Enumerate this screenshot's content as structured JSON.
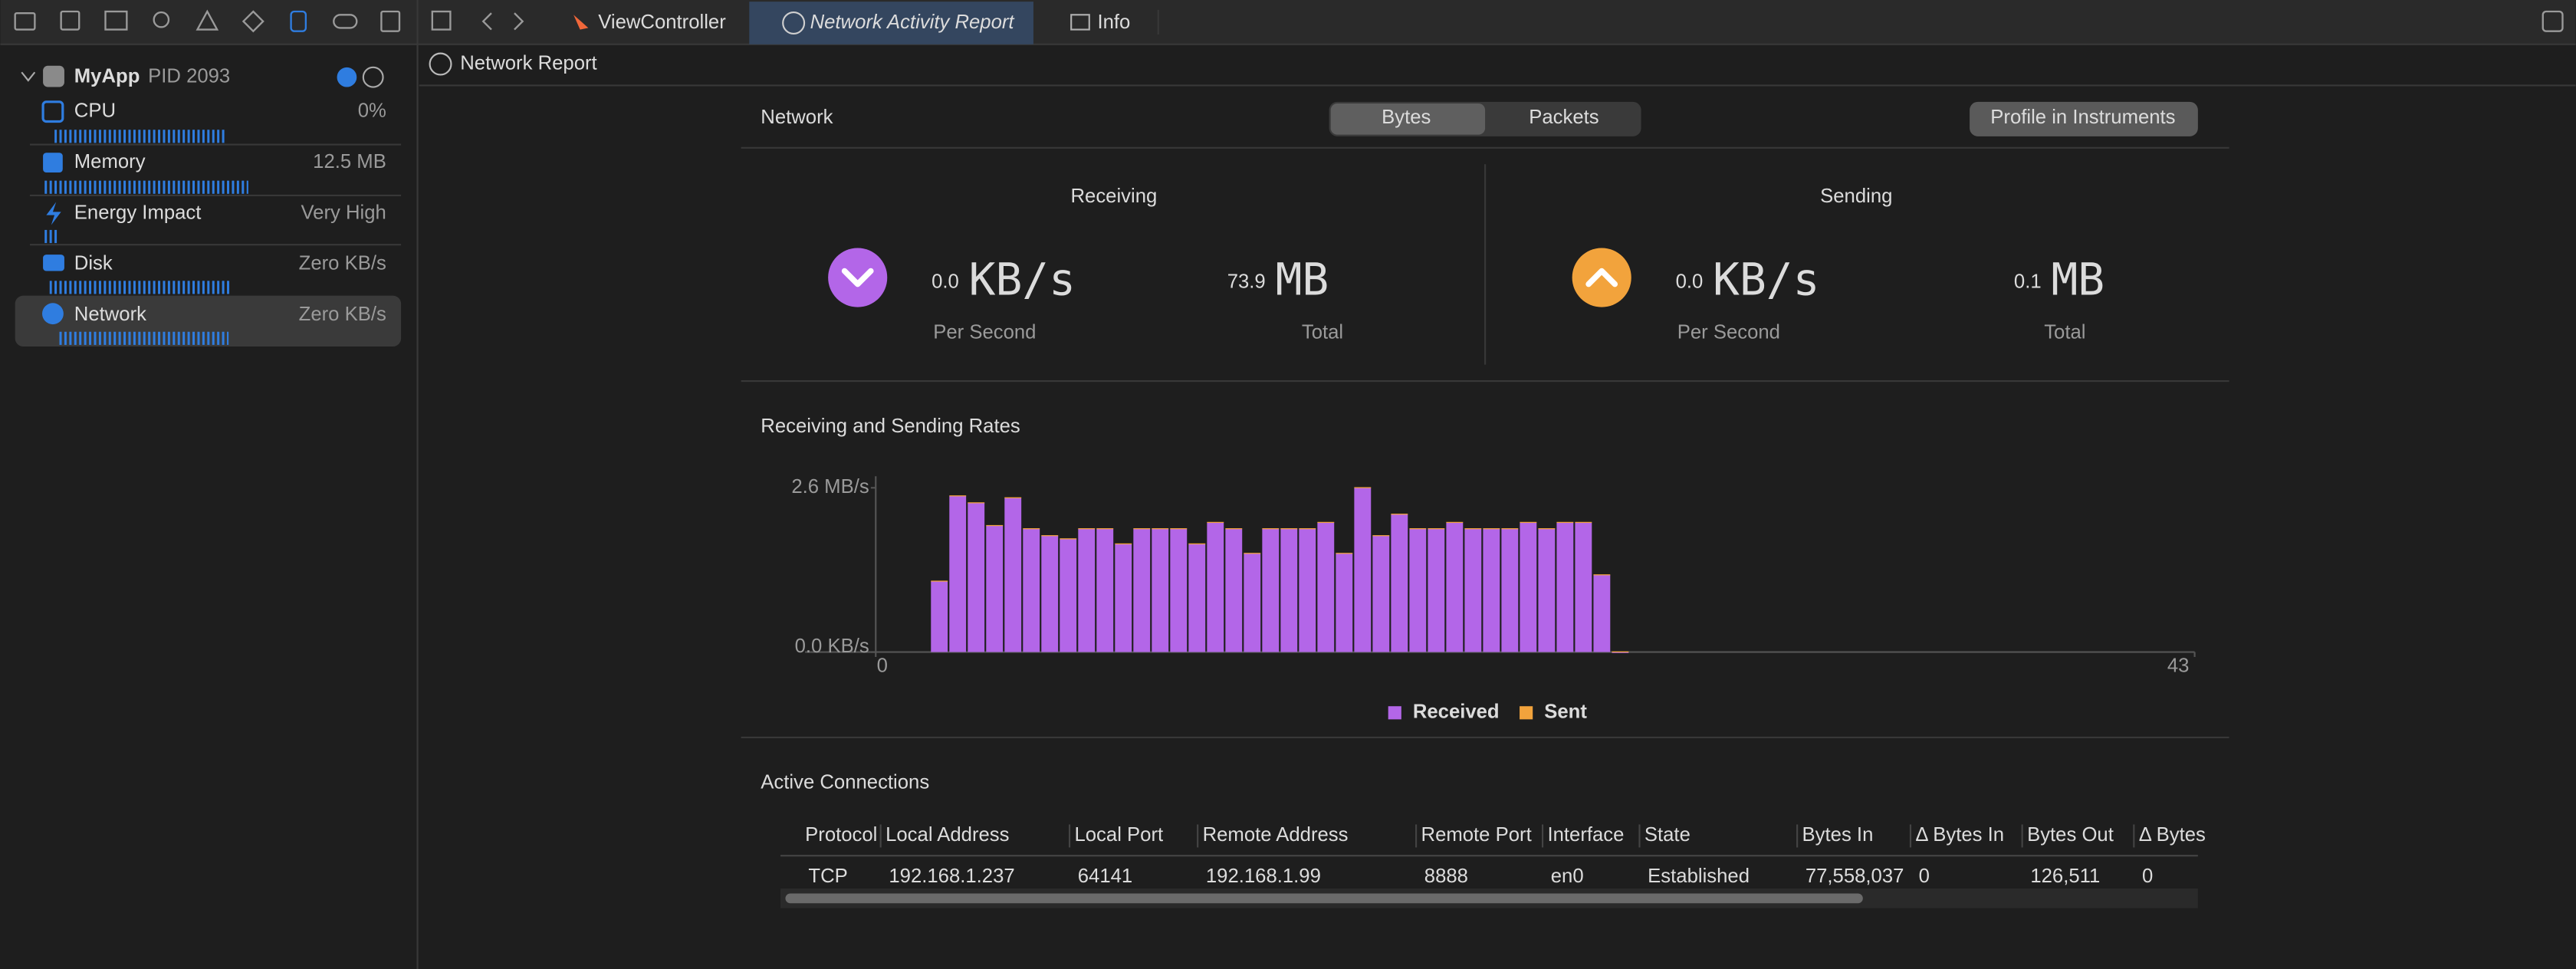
{
  "tabs": [
    "ViewController",
    "Network Activity Report",
    "Info"
  ],
  "sidebar": {
    "app": "MyApp",
    "pid": "PID 2093",
    "gauges": [
      {
        "label": "CPU",
        "value": "0%"
      },
      {
        "label": "Memory",
        "value": "12.5 MB"
      },
      {
        "label": "Energy Impact",
        "value": "Very High"
      },
      {
        "label": "Disk",
        "value": "Zero KB/s"
      },
      {
        "label": "Network",
        "value": "Zero KB/s"
      }
    ]
  },
  "breadcrumb": "Network Report",
  "header": {
    "title": "Network",
    "segments": [
      "Bytes",
      "Packets"
    ],
    "button": "Profile in Instruments"
  },
  "receiving": {
    "title": "Receiving",
    "rate": "0.0",
    "rate_unit": "KB/s",
    "rate_label": "Per Second",
    "total": "73.9",
    "total_unit": "MB",
    "total_label": "Total"
  },
  "sending": {
    "title": "Sending",
    "rate": "0.0",
    "rate_unit": "KB/s",
    "rate_label": "Per Second",
    "total": "0.1",
    "total_unit": "MB",
    "total_label": "Total"
  },
  "chart_data": {
    "type": "bar",
    "title": "Receiving and Sending Rates",
    "x": [
      1.8,
      2.4,
      3.0,
      3.6,
      4.2,
      4.8,
      5.4,
      6.0,
      6.6,
      7.2,
      7.8,
      8.4,
      9.0,
      9.6,
      10.2,
      10.8,
      11.4,
      12.0,
      12.6,
      13.2,
      13.8,
      14.4,
      15.0,
      15.6,
      16.2,
      16.8,
      17.4,
      18.0,
      18.6,
      19.2,
      19.8,
      20.4,
      21.0,
      21.6,
      22.2,
      22.8,
      23.4,
      24.0
    ],
    "series": [
      {
        "name": "Received",
        "color": "#b366e8",
        "values": [
          1.12,
          2.47,
          2.36,
          2.0,
          2.44,
          1.95,
          1.84,
          1.79,
          1.95,
          1.95,
          1.71,
          1.95,
          1.95,
          1.95,
          1.71,
          2.05,
          1.95,
          1.56,
          1.95,
          1.95,
          1.95,
          2.05,
          1.56,
          2.6,
          1.84,
          2.18,
          1.95,
          1.95,
          2.05,
          1.95,
          1.95,
          1.95,
          2.05,
          1.95,
          2.05,
          2.05,
          1.22,
          0
        ]
      },
      {
        "name": "Sent",
        "color": "#f2a33c",
        "values": [
          0.01,
          0.01,
          0.01,
          0.01,
          0.01,
          0.01,
          0.01,
          0.01,
          0.01,
          0.01,
          0.01,
          0.01,
          0.01,
          0.01,
          0.01,
          0.01,
          0.01,
          0.01,
          0.01,
          0.01,
          0.01,
          0.01,
          0.01,
          0.01,
          0.01,
          0.01,
          0.01,
          0.01,
          0.01,
          0.01,
          0.01,
          0.01,
          0.01,
          0.01,
          0.01,
          0.01,
          0.01,
          0.01
        ]
      }
    ],
    "xlim": [
      0,
      43
    ],
    "xticks": [
      0,
      43
    ],
    "ylim": [
      0,
      2.6
    ],
    "yticks": [
      {
        "value": 0,
        "label": "0.0 KB/s"
      },
      {
        "value": 2.6,
        "label": "2.6 MB/s"
      }
    ],
    "stacked": true,
    "grid": false
  },
  "connections": {
    "title": "Active Connections",
    "columns": [
      "Protocol",
      "Local Address",
      "Local Port",
      "Remote Address",
      "Remote Port",
      "Interface",
      "State",
      "Bytes In",
      "Δ Bytes In",
      "Bytes Out",
      "Δ Bytes"
    ],
    "rows": [
      [
        "TCP",
        "192.168.1.237",
        "64141",
        "192.168.1.99",
        "8888",
        "en0",
        "Established",
        "77,558,037",
        "0",
        "126,511",
        "0"
      ]
    ]
  }
}
